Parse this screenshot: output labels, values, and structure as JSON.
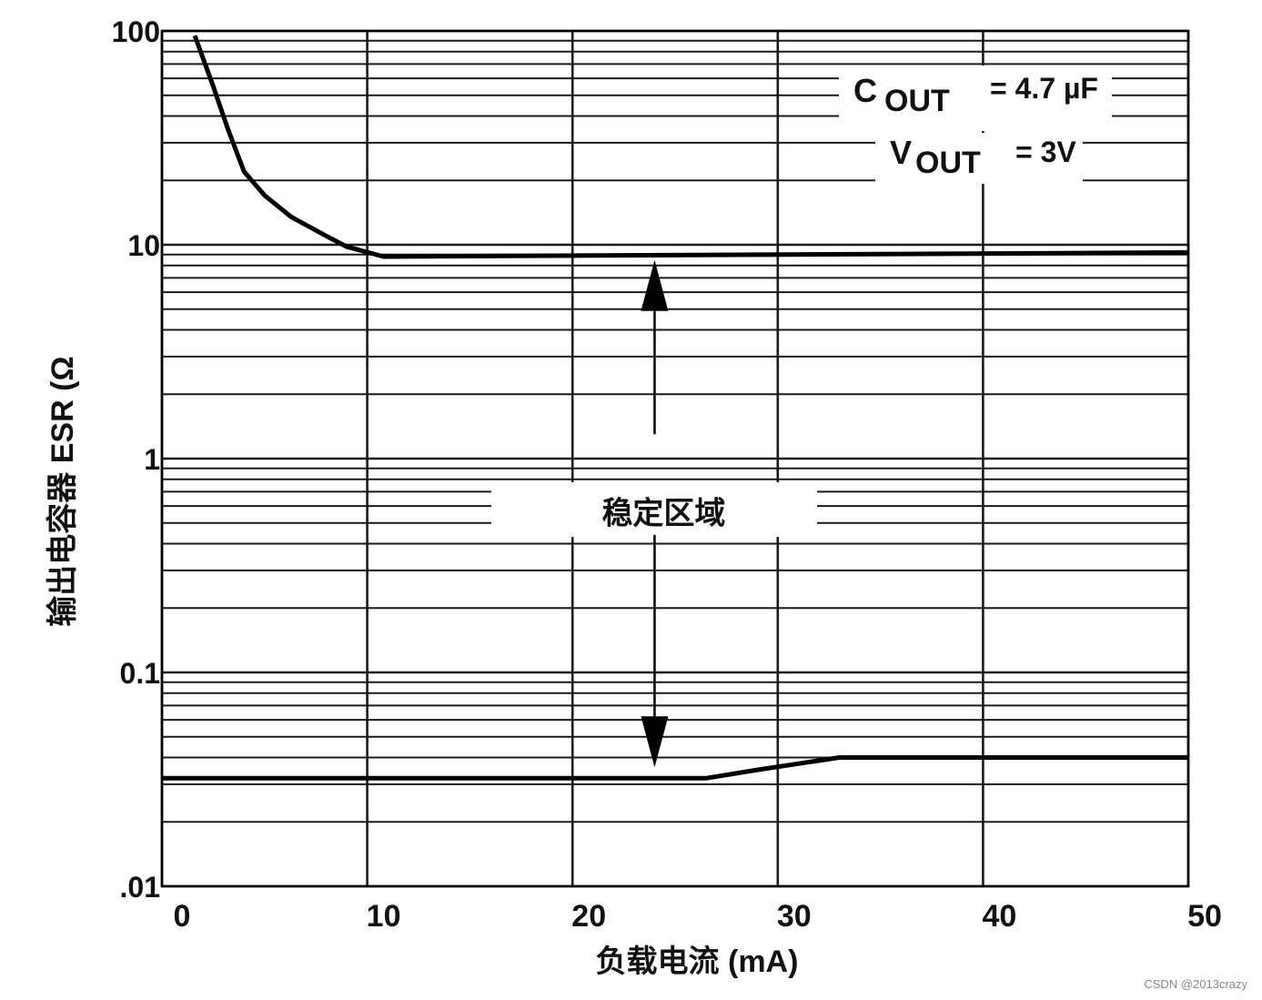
{
  "chart_data": {
    "type": "line",
    "xlabel": "负载电流 (mA)",
    "ylabel": "输出电容器 ESR (Ω",
    "xlim": [
      0,
      50
    ],
    "ylim": [
      0.01,
      100
    ],
    "yscale": "log",
    "grid": true,
    "x_ticks": [
      0,
      10,
      20,
      30,
      40,
      50
    ],
    "x_tick_labels": [
      "0",
      "10",
      "20",
      "30",
      "40",
      "50"
    ],
    "y_ticks": [
      0.01,
      0.1,
      1,
      10,
      100
    ],
    "y_tick_labels": [
      ".01",
      "0.1",
      "1",
      "10",
      "100"
    ],
    "series": [
      {
        "role": "upper-bound",
        "x": [
          1.6,
          2.5,
          3.2,
          4,
          5,
          6.3,
          8,
          9,
          10.8,
          50
        ],
        "y": [
          95,
          55,
          35,
          22,
          17,
          13.5,
          11,
          9.8,
          8.8,
          9.2
        ]
      },
      {
        "role": "lower-bound",
        "x": [
          0,
          26.5,
          29,
          33,
          50
        ],
        "y": [
          0.032,
          0.032,
          0.035,
          0.04,
          0.04
        ]
      }
    ],
    "annotations": {
      "cout_letter": "C",
      "cout_sub": "OUT",
      "cout_value": "= 4.7 µF",
      "vout_letter": "V",
      "vout_sub": "OUT",
      "vout_value": "= 3V",
      "region_label": "稳定区域"
    },
    "colors": {
      "line": "#000000",
      "grid": "#1a1a1a"
    }
  },
  "watermark": "CSDN @2013crazy"
}
